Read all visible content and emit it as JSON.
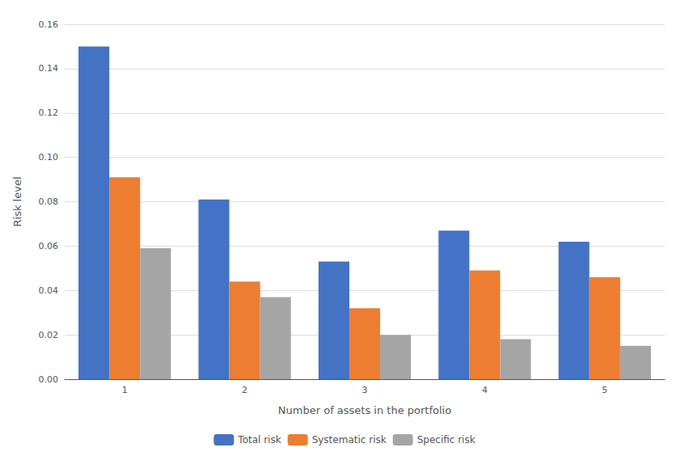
{
  "chart_data": {
    "type": "bar",
    "xlabel": "Number of assets in the portfolio",
    "ylabel": "Risk level",
    "categories": [
      "1",
      "2",
      "3",
      "4",
      "5"
    ],
    "series": [
      {
        "name": "Total risk",
        "color": "#4472C4",
        "values": [
          0.15,
          0.081,
          0.053,
          0.067,
          0.062
        ]
      },
      {
        "name": "Systematic risk",
        "color": "#ED7D31",
        "values": [
          0.091,
          0.044,
          0.032,
          0.049,
          0.046
        ]
      },
      {
        "name": "Specific risk",
        "color": "#A5A5A5",
        "values": [
          0.059,
          0.037,
          0.02,
          0.018,
          0.015
        ]
      }
    ],
    "ylim": [
      0.0,
      0.16
    ],
    "yticks": [
      {
        "value": 0.0,
        "label": "0.00"
      },
      0.02,
      0.04,
      0.06,
      0.08,
      {
        "value": 0.1,
        "label": "0.10"
      },
      0.12,
      0.14,
      0.16
    ],
    "grid": true,
    "legend": "bottom"
  }
}
